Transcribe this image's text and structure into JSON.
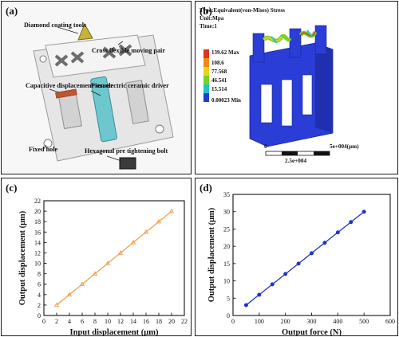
{
  "panel_labels": {
    "a": "(a)",
    "b": "(b)",
    "c": "(c)",
    "d": "(d)"
  },
  "model_annotations": {
    "diamond_tools": "Diamond coating tools",
    "cross_pair": "Cross flexible moving pair",
    "cap_sensor": "Capacitive displacement sensor",
    "piezo_driver": "Piezoelectric ceramic driver",
    "fixed_hole": "Fixed hole",
    "hex_bolt": "Hexagonal pre tightening bolt"
  },
  "fea": {
    "type_line": "Type:Equivalent(von-Mises) Stress",
    "unit_line": "Unit:Mpa",
    "time_line": "Time:1",
    "legend_values": [
      "139.62 Max",
      "108.6",
      "77.568",
      "46.541",
      "15.514",
      "0.00023 Min"
    ],
    "legend_colors": [
      "#e0321c",
      "#f28a17",
      "#e8d21e",
      "#7ccf2a",
      "#1ec6c6",
      "#1a3fcf"
    ],
    "scale_left": "0",
    "scale_right": "5e+004(μm)",
    "scale_mid": "2.5e+004"
  },
  "chart_data": [
    {
      "type": "line",
      "xlabel": "Input displacement (μm)",
      "ylabel": "Output displacement (μm)",
      "xlim": [
        0,
        22
      ],
      "ylim": [
        0,
        22
      ],
      "xticks": [
        0,
        2,
        4,
        6,
        8,
        10,
        12,
        14,
        16,
        18,
        20,
        22
      ],
      "yticks": [
        0,
        2,
        4,
        6,
        8,
        10,
        12,
        14,
        16,
        18,
        20,
        22
      ],
      "color": "#f0a050",
      "series": [
        {
          "x": [
            2,
            4,
            6,
            8,
            10,
            12,
            14,
            16,
            18,
            20
          ],
          "y": [
            2,
            4,
            6,
            8,
            10,
            12,
            14,
            16,
            18,
            20
          ]
        }
      ]
    },
    {
      "type": "line",
      "xlabel": "Output force (N)",
      "ylabel": "Output displacement (μm)",
      "xlim": [
        0,
        600
      ],
      "ylim": [
        0,
        35
      ],
      "xticks": [
        0,
        100,
        200,
        300,
        400,
        500,
        600
      ],
      "yticks": [
        0,
        5,
        10,
        15,
        20,
        25,
        30,
        35
      ],
      "color": "#2233cc",
      "series": [
        {
          "x": [
            50,
            100,
            150,
            200,
            250,
            300,
            350,
            400,
            450,
            500
          ],
          "y": [
            3,
            6,
            9,
            12,
            15,
            18,
            21,
            24,
            27,
            30
          ]
        }
      ]
    }
  ]
}
